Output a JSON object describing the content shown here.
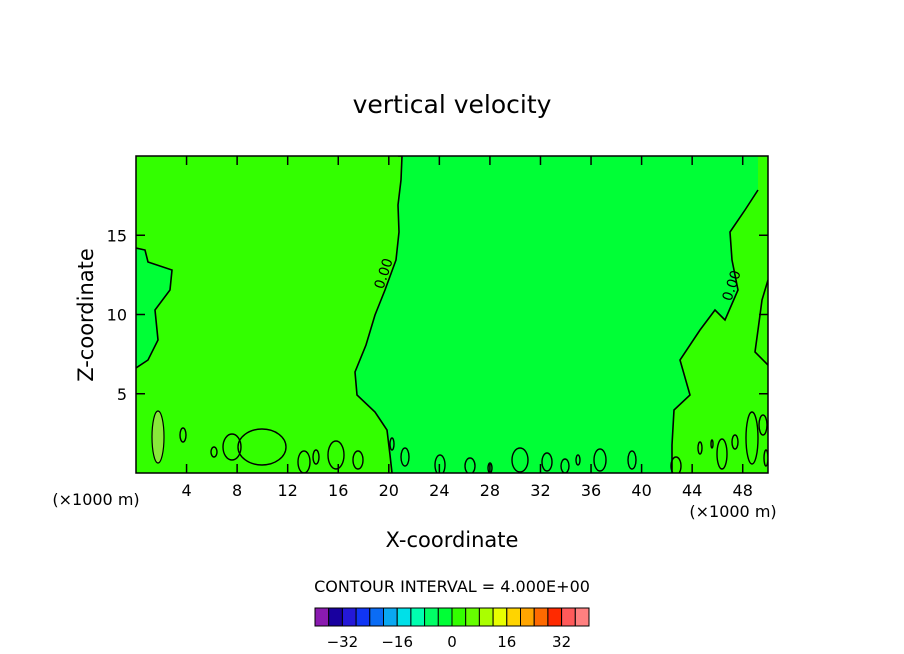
{
  "chart_data": {
    "type": "contour",
    "title": "vertical velocity",
    "xlabel": "X-coordinate",
    "ylabel": "Z-coordinate",
    "x_unit_left": "(×1000 m)",
    "x_unit_right": "(×1000 m)",
    "xlim": [
      0,
      50
    ],
    "ylim": [
      0,
      20
    ],
    "x_ticks": [
      4,
      8,
      12,
      16,
      20,
      24,
      28,
      32,
      36,
      40,
      44,
      48
    ],
    "y_ticks": [
      5,
      10,
      15
    ],
    "contour_interval_label": "CONTOUR INTERVAL = 4.000E+00",
    "contour_labels": [
      "0.00",
      "0.00"
    ],
    "fill_colors": {
      "negative_near_zero": "#00ff36",
      "positive_near_zero": "#33ff00",
      "positive_small": "#88e83a"
    },
    "colorbar": {
      "colors": [
        "#8a1ab0",
        "#18009f",
        "#2418d8",
        "#1035f5",
        "#0a6cf5",
        "#0aa8f2",
        "#00e0e8",
        "#00ffb0",
        "#00ff66",
        "#00ff36",
        "#33ff00",
        "#66ff00",
        "#aaff00",
        "#e8ff00",
        "#ffd400",
        "#ffa500",
        "#ff6a00",
        "#ff2a00",
        "#ff5a5a",
        "#ff8080"
      ],
      "tick_labels": [
        "−32",
        "−16",
        "0",
        "16",
        "32"
      ],
      "tick_values": [
        -32,
        -16,
        0,
        16,
        32
      ],
      "range": [
        -40,
        40
      ]
    },
    "grid": false,
    "legend": "bottom-center"
  }
}
